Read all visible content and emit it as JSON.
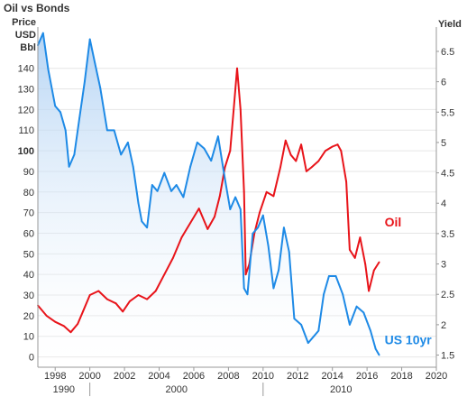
{
  "chart_data": {
    "type": "line",
    "title": "Oil vs Bonds",
    "left_axis_label_lines": [
      "Price",
      "USD",
      "Bbl"
    ],
    "right_axis_label": "Yield",
    "xlim": [
      1997,
      2020
    ],
    "ylim_left": [
      -5,
      160
    ],
    "ylim_right": [
      1.3,
      6.9
    ],
    "x_ticks": [
      1998,
      2000,
      2002,
      2004,
      2006,
      2008,
      2010,
      2012,
      2014,
      2016,
      2018,
      2020
    ],
    "left_ticks": [
      0,
      10,
      20,
      30,
      40,
      50,
      60,
      70,
      80,
      90,
      100,
      110,
      120,
      130,
      140
    ],
    "right_ticks": [
      1.5,
      2,
      2.5,
      3,
      3.5,
      4,
      4.5,
      5,
      5.5,
      6,
      6.5
    ],
    "decade_labels": [
      {
        "label": "1990",
        "center": 1998.5
      },
      {
        "label": "2000",
        "center": 2005.0
      },
      {
        "label": "2010",
        "center": 2014.5
      }
    ],
    "decade_boundaries": [
      2000,
      2010
    ],
    "grid": "horizontal",
    "series": [
      {
        "name": "Oil",
        "axis": "left",
        "color": "#e8141a",
        "x": [
          1997.0,
          1997.5,
          1998.0,
          1998.5,
          1998.9,
          1999.3,
          1999.6,
          2000.0,
          2000.5,
          2001.0,
          2001.5,
          2001.9,
          2002.3,
          2002.8,
          2003.3,
          2003.8,
          2004.3,
          2004.8,
          2005.3,
          2005.8,
          2006.3,
          2006.8,
          2007.2,
          2007.5,
          2007.8,
          2008.1,
          2008.3,
          2008.5,
          2008.7,
          2008.9,
          2009.0,
          2009.2,
          2009.5,
          2009.8,
          2010.2,
          2010.6,
          2011.0,
          2011.3,
          2011.6,
          2011.9,
          2012.2,
          2012.5,
          2012.8,
          2013.2,
          2013.6,
          2014.0,
          2014.3,
          2014.5,
          2014.8,
          2015.0,
          2015.3,
          2015.6,
          2015.9,
          2016.1,
          2016.4,
          2016.7
        ],
        "values": [
          25,
          20,
          17,
          15,
          12,
          16,
          22,
          30,
          32,
          28,
          26,
          22,
          27,
          30,
          28,
          32,
          40,
          48,
          58,
          65,
          72,
          62,
          68,
          78,
          92,
          100,
          120,
          140,
          120,
          80,
          40,
          45,
          60,
          70,
          80,
          78,
          92,
          105,
          98,
          95,
          103,
          90,
          92,
          95,
          100,
          102,
          103,
          100,
          85,
          52,
          48,
          58,
          45,
          32,
          42,
          46
        ]
      },
      {
        "name": "US 10yr",
        "axis": "right",
        "color": "#1e8ae6",
        "x": [
          1997.0,
          1997.3,
          1997.6,
          1998.0,
          1998.3,
          1998.6,
          1998.8,
          1999.1,
          1999.4,
          1999.7,
          2000.0,
          2000.3,
          2000.6,
          2001.0,
          2001.4,
          2001.8,
          2002.2,
          2002.5,
          2002.8,
          2003.0,
          2003.3,
          2003.6,
          2003.9,
          2004.3,
          2004.7,
          2005.0,
          2005.4,
          2005.8,
          2006.2,
          2006.6,
          2007.0,
          2007.4,
          2007.8,
          2008.1,
          2008.4,
          2008.7,
          2008.9,
          2009.1,
          2009.4,
          2009.7,
          2010.0,
          2010.3,
          2010.6,
          2010.9,
          2011.2,
          2011.5,
          2011.8,
          2012.2,
          2012.6,
          2012.9,
          2013.2,
          2013.5,
          2013.8,
          2014.2,
          2014.6,
          2015.0,
          2015.4,
          2015.8,
          2016.2,
          2016.5,
          2016.7
        ],
        "values": [
          6.6,
          6.8,
          6.2,
          5.6,
          5.5,
          5.2,
          4.6,
          4.8,
          5.4,
          6.0,
          6.7,
          6.3,
          5.9,
          5.2,
          5.2,
          4.8,
          5.0,
          4.6,
          4.0,
          3.7,
          3.6,
          4.3,
          4.2,
          4.5,
          4.2,
          4.3,
          4.1,
          4.6,
          5.0,
          4.9,
          4.7,
          5.1,
          4.4,
          3.9,
          4.1,
          3.9,
          2.6,
          2.5,
          3.5,
          3.6,
          3.8,
          3.3,
          2.6,
          2.9,
          3.6,
          3.2,
          2.1,
          2.0,
          1.7,
          1.8,
          1.9,
          2.5,
          2.8,
          2.8,
          2.5,
          2.0,
          2.3,
          2.2,
          1.9,
          1.6,
          1.5
        ]
      }
    ],
    "annotations": [
      {
        "text": "Oil",
        "series": "Oil"
      },
      {
        "text": "US 10yr",
        "series": "US 10yr"
      }
    ]
  }
}
